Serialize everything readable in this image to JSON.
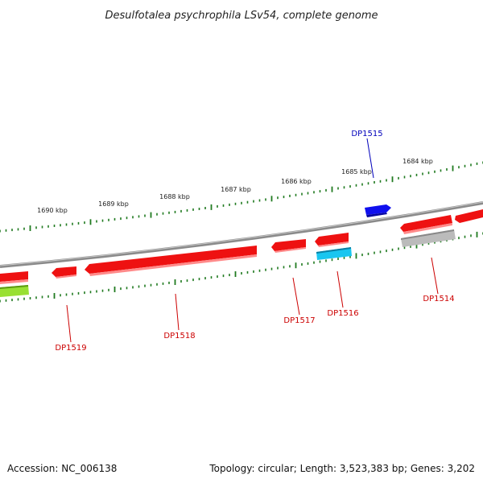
{
  "title": "Desulfotalea psychrophila LSv54, complete genome",
  "colors": {
    "backbone": "#8a8a8a",
    "tick": "#1f7a1f",
    "gene_red": "#ee1111",
    "gene_blue": "#1010ee",
    "gene_cyan": "#19c6f0",
    "gene_grey": "#bbbbbb",
    "gene_lime": "#99e033",
    "label_red": "#cc0000",
    "label_blue": "#0000bb"
  },
  "scale": {
    "unit": "kbp",
    "labels": [
      "1690 kbp",
      "1689 kbp",
      "1688 kbp",
      "1687 kbp",
      "1686 kbp",
      "1685 kbp",
      "1684 kbp"
    ]
  },
  "gene_labels": {
    "dp1515": "DP1515",
    "dp1514": "DP1514",
    "dp1516": "DP1516",
    "dp1517": "DP1517",
    "dp1518": "DP1518",
    "dp1519": "DP1519"
  },
  "footer": {
    "accession": "Accession: NC_006138",
    "summary": "Topology: circular; Length: 3,523,383 bp; Genes: 3,202"
  }
}
